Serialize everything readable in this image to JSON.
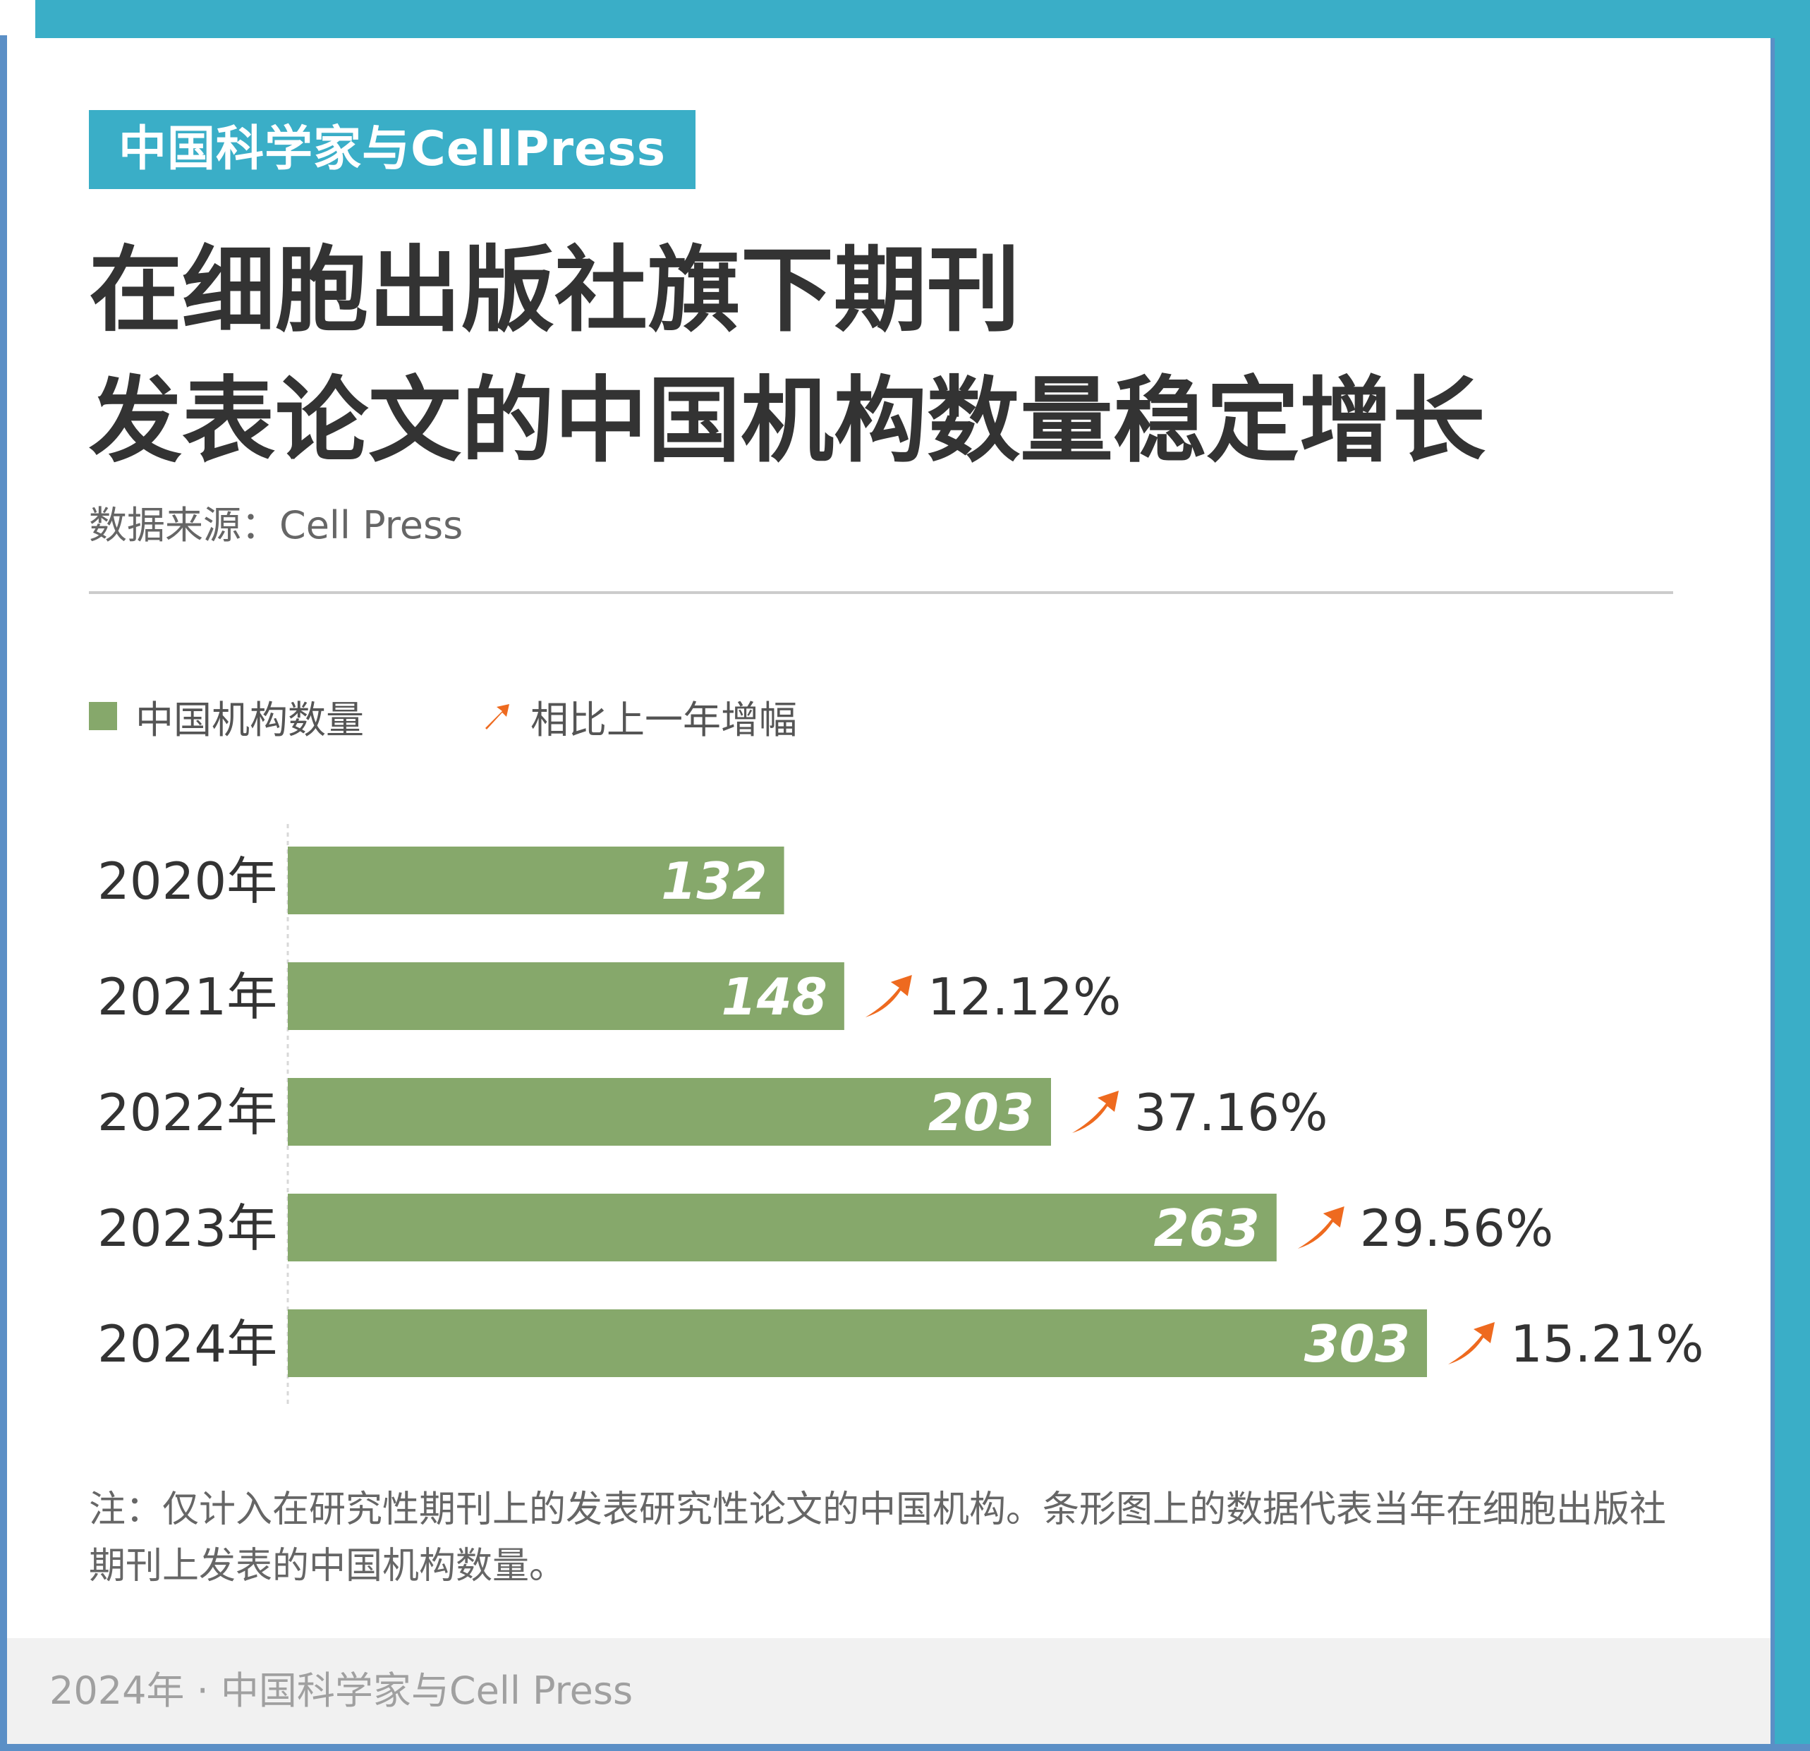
{
  "header": {
    "badge": "中国科学家与CellPress",
    "title_line1": "在细胞出版社旗下期刊",
    "title_line2": "发表论文的中国机构数量稳定增长",
    "source": "数据来源：Cell Press"
  },
  "chart_data": {
    "type": "bar",
    "orientation": "horizontal",
    "title": "在细胞出版社旗下期刊发表论文的中国机构数量稳定增长",
    "categories": [
      "2020年",
      "2021年",
      "2022年",
      "2023年",
      "2024年"
    ],
    "series": [
      {
        "name": "中国机构数量",
        "values": [
          132,
          148,
          203,
          263,
          303
        ]
      }
    ],
    "growth": {
      "name": "相比上一年增幅",
      "labels": [
        "",
        "12.12%",
        "37.16%",
        "29.56%",
        "15.21%"
      ]
    },
    "value_labels": [
      "132",
      "148",
      "203",
      "263",
      "303"
    ],
    "xlim": [
      0,
      303
    ],
    "grid": false,
    "legend_position": "top-left",
    "colors": {
      "bar": "#86a86b",
      "arrow": "#ee6a1f",
      "text": "#333333"
    }
  },
  "legend": {
    "bar_label": "中国机构数量",
    "arrow_label": "相比上一年增幅"
  },
  "note": "注：仅计入在研究性期刊上的发表研究性论文的中国机构。条形图上的数据代表当年在细胞出版社期刊上发表的中国机构数量。",
  "footer": "2024年 · 中国科学家与Cell Press"
}
